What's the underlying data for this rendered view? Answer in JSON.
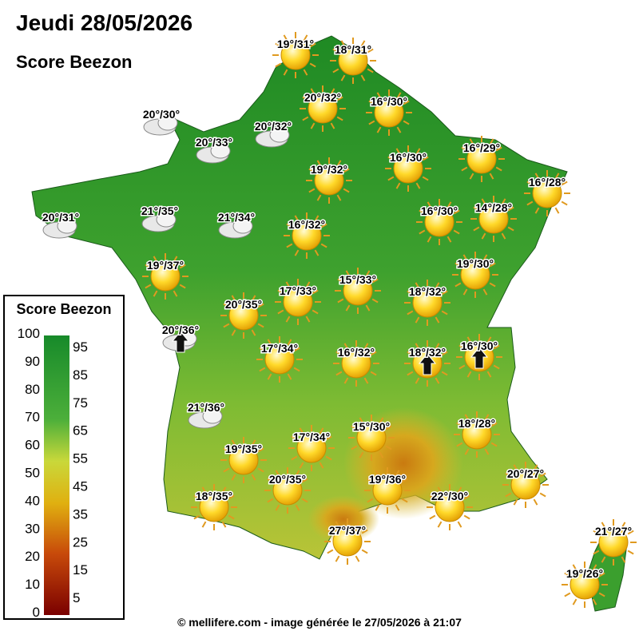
{
  "header": {
    "title": "Jeudi 28/05/2026",
    "subtitle": "Score Beezon"
  },
  "legend": {
    "title": "Score Beezon",
    "left_ticks": [
      100,
      90,
      80,
      70,
      60,
      50,
      40,
      30,
      20,
      10,
      0
    ],
    "right_ticks": [
      95,
      85,
      75,
      65,
      55,
      45,
      35,
      25,
      15,
      5
    ]
  },
  "stations": [
    "19°/31°",
    "18°/31°",
    "20°/32°",
    "16°/30°",
    "20°/30°",
    "20°/32°",
    "20°/33°",
    "19°/32°",
    "16°/30°",
    "16°/29°",
    "16°/28°",
    "20°/31°",
    "21°/35°",
    "21°/34°",
    "16°/32°",
    "16°/30°",
    "14°/28°",
    "19°/37°",
    "19°/30°",
    "17°/33°",
    "15°/33°",
    "18°/32°",
    "20°/35°",
    "20°/36°",
    "17°/34°",
    "16°/32°",
    "18°/32°",
    "16°/30°",
    "21°/36°",
    "15°/30°",
    "18°/28°",
    "19°/35°",
    "17°/34°",
    "20°/27°",
    "20°/35°",
    "19°/36°",
    "18°/35°",
    "22°/30°",
    "27°/37°",
    "21°/27°",
    "19°/26°"
  ],
  "footer": "© mellifere.com - image générée le 27/05/2026 à 21:07"
}
